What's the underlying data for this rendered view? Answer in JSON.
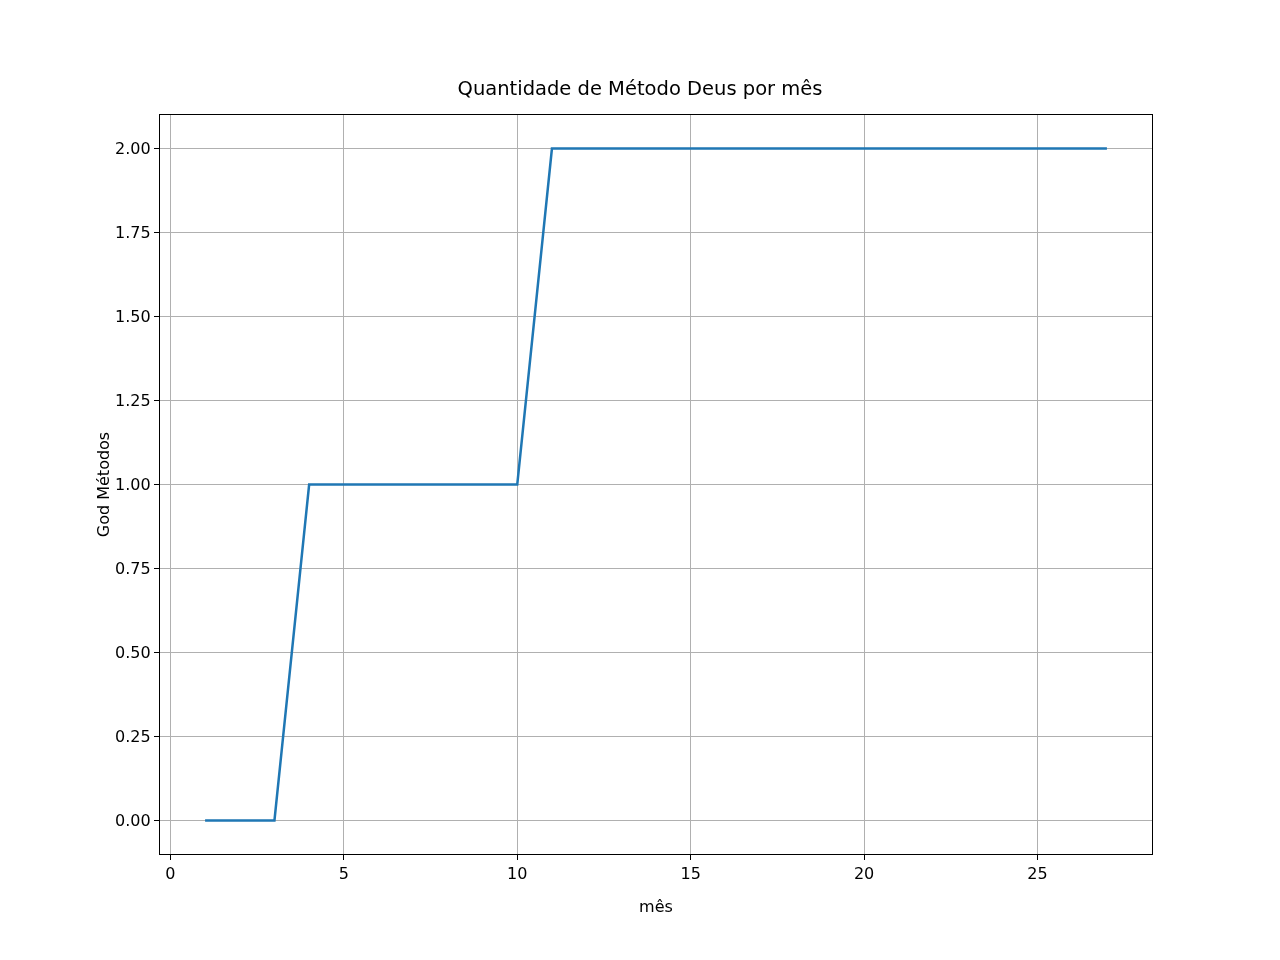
{
  "chart_data": {
    "type": "line",
    "title": "Quantidade de Método Deus por mês",
    "xlabel": "mês",
    "ylabel": "God Métodos",
    "x": [
      1,
      2,
      3,
      4,
      5,
      6,
      7,
      8,
      9,
      10,
      11,
      12,
      13,
      14,
      15,
      16,
      17,
      18,
      19,
      20,
      21,
      22,
      23,
      24,
      25,
      26,
      27
    ],
    "series": [
      {
        "color": "#1f77b4",
        "values": [
          0,
          0,
          0,
          1,
          1,
          1,
          1,
          1,
          1,
          1,
          2,
          2,
          2,
          2,
          2,
          2,
          2,
          2,
          2,
          2,
          2,
          2,
          2,
          2,
          2,
          2,
          2
        ]
      }
    ],
    "xlim": [
      -0.3,
      28.3
    ],
    "xticks": [
      0,
      5,
      10,
      15,
      20,
      25
    ],
    "ylim": [
      -0.1,
      2.1
    ],
    "yticks": [
      {
        "value": 0,
        "label": "0.00"
      },
      {
        "value": 0.25,
        "label": "0.25"
      },
      {
        "value": 0.5,
        "label": "0.50"
      },
      {
        "value": 0.75,
        "label": "0.75"
      },
      {
        "value": 1,
        "label": "1.00"
      },
      {
        "value": 1.25,
        "label": "1.25"
      },
      {
        "value": 1.5,
        "label": "1.50"
      },
      {
        "value": 1.75,
        "label": "1.75"
      },
      {
        "value": 2,
        "label": "2.00"
      }
    ],
    "grid": true,
    "marker": "none",
    "line_style": "solid"
  }
}
